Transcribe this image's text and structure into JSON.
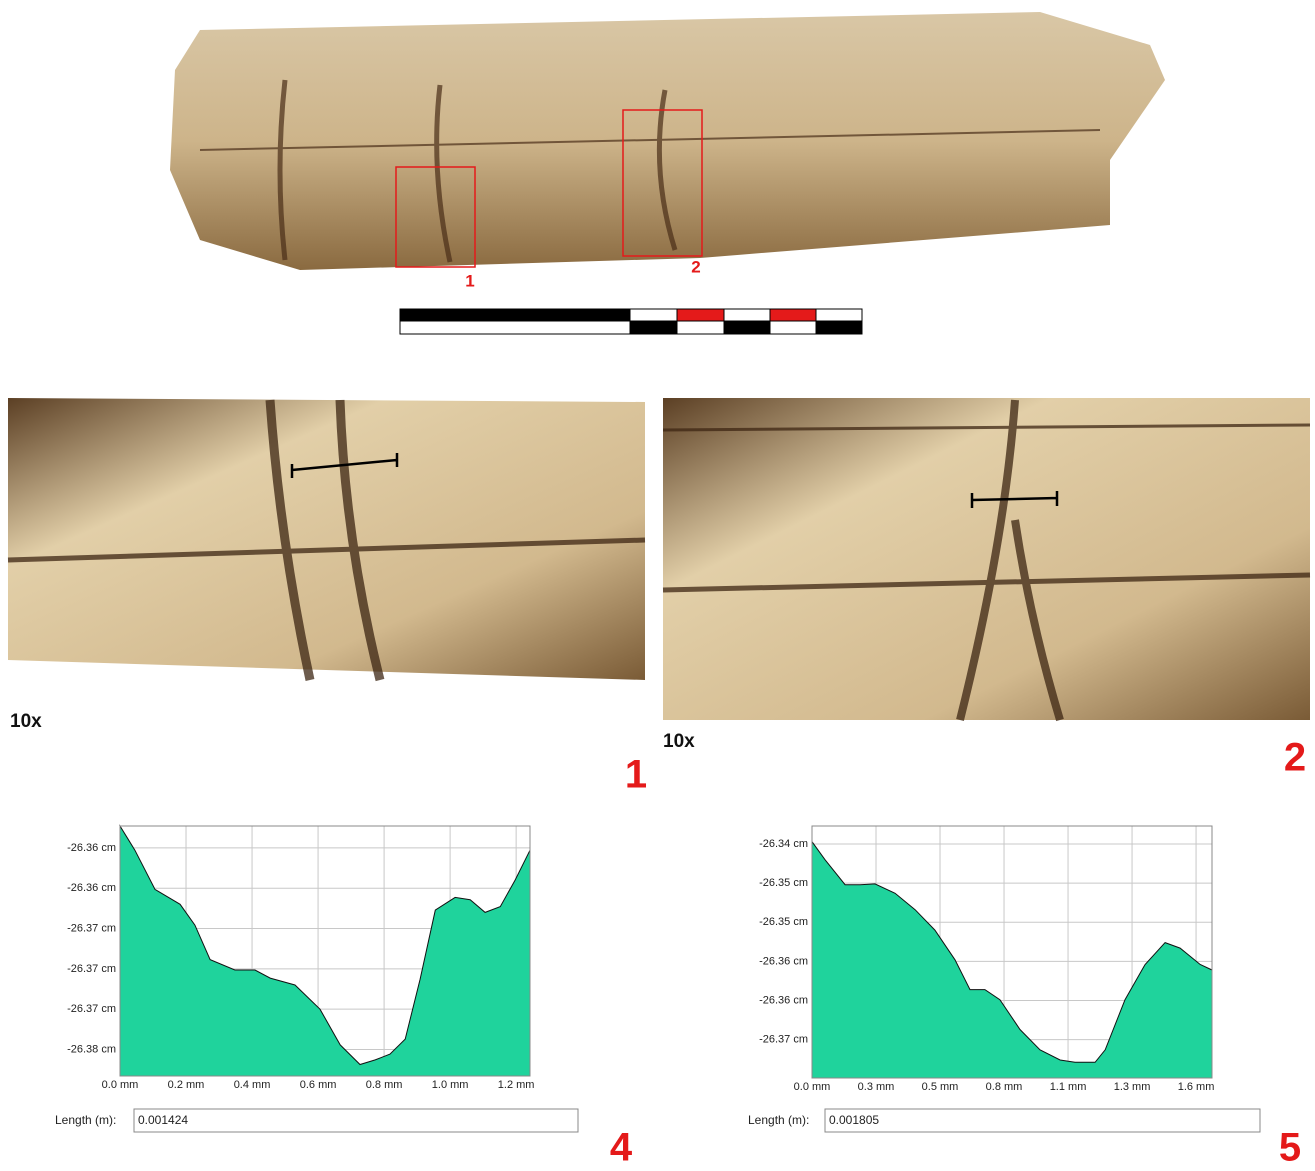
{
  "photo_labels": {
    "box_1": "1",
    "box_2": "2"
  },
  "detail_1": {
    "magnification": "10x",
    "panel": "1"
  },
  "detail_2": {
    "magnification": "10x",
    "panel": "2"
  },
  "chart_data": [
    {
      "type": "area",
      "panel": "4",
      "color": "#1fd39c",
      "grid": true,
      "length_label": "Length (m):",
      "length_value": "0.001424",
      "x": [
        0,
        0.045,
        0.106,
        0.182,
        0.227,
        0.273,
        0.348,
        0.409,
        0.455,
        0.53,
        0.606,
        0.667,
        0.727,
        0.773,
        0.818,
        0.864,
        0.909,
        0.955,
        1.015,
        1.061,
        1.106,
        1.152,
        1.197,
        1.242
      ],
      "values": [
        -26.3586,
        -26.3607,
        -26.3641,
        -26.3654,
        -26.3672,
        -26.3702,
        -26.3711,
        -26.3711,
        -26.3718,
        -26.3724,
        -26.3745,
        -26.3776,
        -26.3793,
        -26.3789,
        -26.3784,
        -26.3771,
        -26.3719,
        -26.3659,
        -26.3648,
        -26.365,
        -26.3661,
        -26.3656,
        -26.3633,
        -26.3607
      ],
      "xlim": [
        0,
        1.242
      ],
      "ylim": [
        -26.3803,
        -26.3586
      ],
      "xticks": [
        {
          "value": 0,
          "label": "0.0 mm"
        },
        {
          "value": 0.2,
          "label": "0.2 mm"
        },
        {
          "value": 0.4,
          "label": "0.4 mm"
        },
        {
          "value": 0.6,
          "label": "0.6 mm"
        },
        {
          "value": 0.8,
          "label": "0.8 mm"
        },
        {
          "value": 1.0,
          "label": "1.0 mm"
        },
        {
          "value": 1.2,
          "label": "1.2 mm"
        }
      ],
      "yticks": [
        {
          "value": -26.3605,
          "label": "-26.36 cm"
        },
        {
          "value": -26.364,
          "label": "-26.36 cm"
        },
        {
          "value": -26.3675,
          "label": "-26.37 cm"
        },
        {
          "value": -26.371,
          "label": "-26.37 cm"
        },
        {
          "value": -26.3745,
          "label": "-26.37 cm"
        },
        {
          "value": -26.378,
          "label": "-26.38 cm"
        }
      ]
    },
    {
      "type": "area",
      "panel": "5",
      "color": "#1fd39c",
      "grid": true,
      "length_label": "Length (m):",
      "length_value": "0.001805",
      "x": [
        0,
        0.054,
        0.137,
        0.199,
        0.261,
        0.344,
        0.427,
        0.509,
        0.592,
        0.654,
        0.716,
        0.778,
        0.861,
        0.944,
        1.027,
        1.089,
        1.172,
        1.214,
        1.296,
        1.379,
        1.462,
        1.524,
        1.607,
        1.656
      ],
      "values": [
        -26.3417,
        -26.344,
        -26.3472,
        -26.3472,
        -26.3471,
        -26.3483,
        -26.3504,
        -26.353,
        -26.3568,
        -26.3606,
        -26.3606,
        -26.3619,
        -26.3657,
        -26.3683,
        -26.3696,
        -26.3699,
        -26.3699,
        -26.3683,
        -26.3619,
        -26.3574,
        -26.3546,
        -26.3553,
        -26.3574,
        -26.3581
      ],
      "xlim": [
        0,
        1.656
      ],
      "ylim": [
        -26.3719,
        -26.3397
      ],
      "xticks": [
        {
          "value": 0,
          "label": "0.0 mm"
        },
        {
          "value": 0.265,
          "label": "0.3 mm"
        },
        {
          "value": 0.53,
          "label": "0.5 mm"
        },
        {
          "value": 0.795,
          "label": "0.8 mm"
        },
        {
          "value": 1.06,
          "label": "1.1 mm"
        },
        {
          "value": 1.325,
          "label": "1.3 mm"
        },
        {
          "value": 1.59,
          "label": "1.6 mm"
        }
      ],
      "yticks": [
        {
          "value": -26.342,
          "label": "-26.34 cm"
        },
        {
          "value": -26.347,
          "label": "-26.35 cm"
        },
        {
          "value": -26.352,
          "label": "-26.35 cm"
        },
        {
          "value": -26.357,
          "label": "-26.36 cm"
        },
        {
          "value": -26.362,
          "label": "-26.36 cm"
        },
        {
          "value": -26.367,
          "label": "-26.37 cm"
        }
      ]
    }
  ]
}
